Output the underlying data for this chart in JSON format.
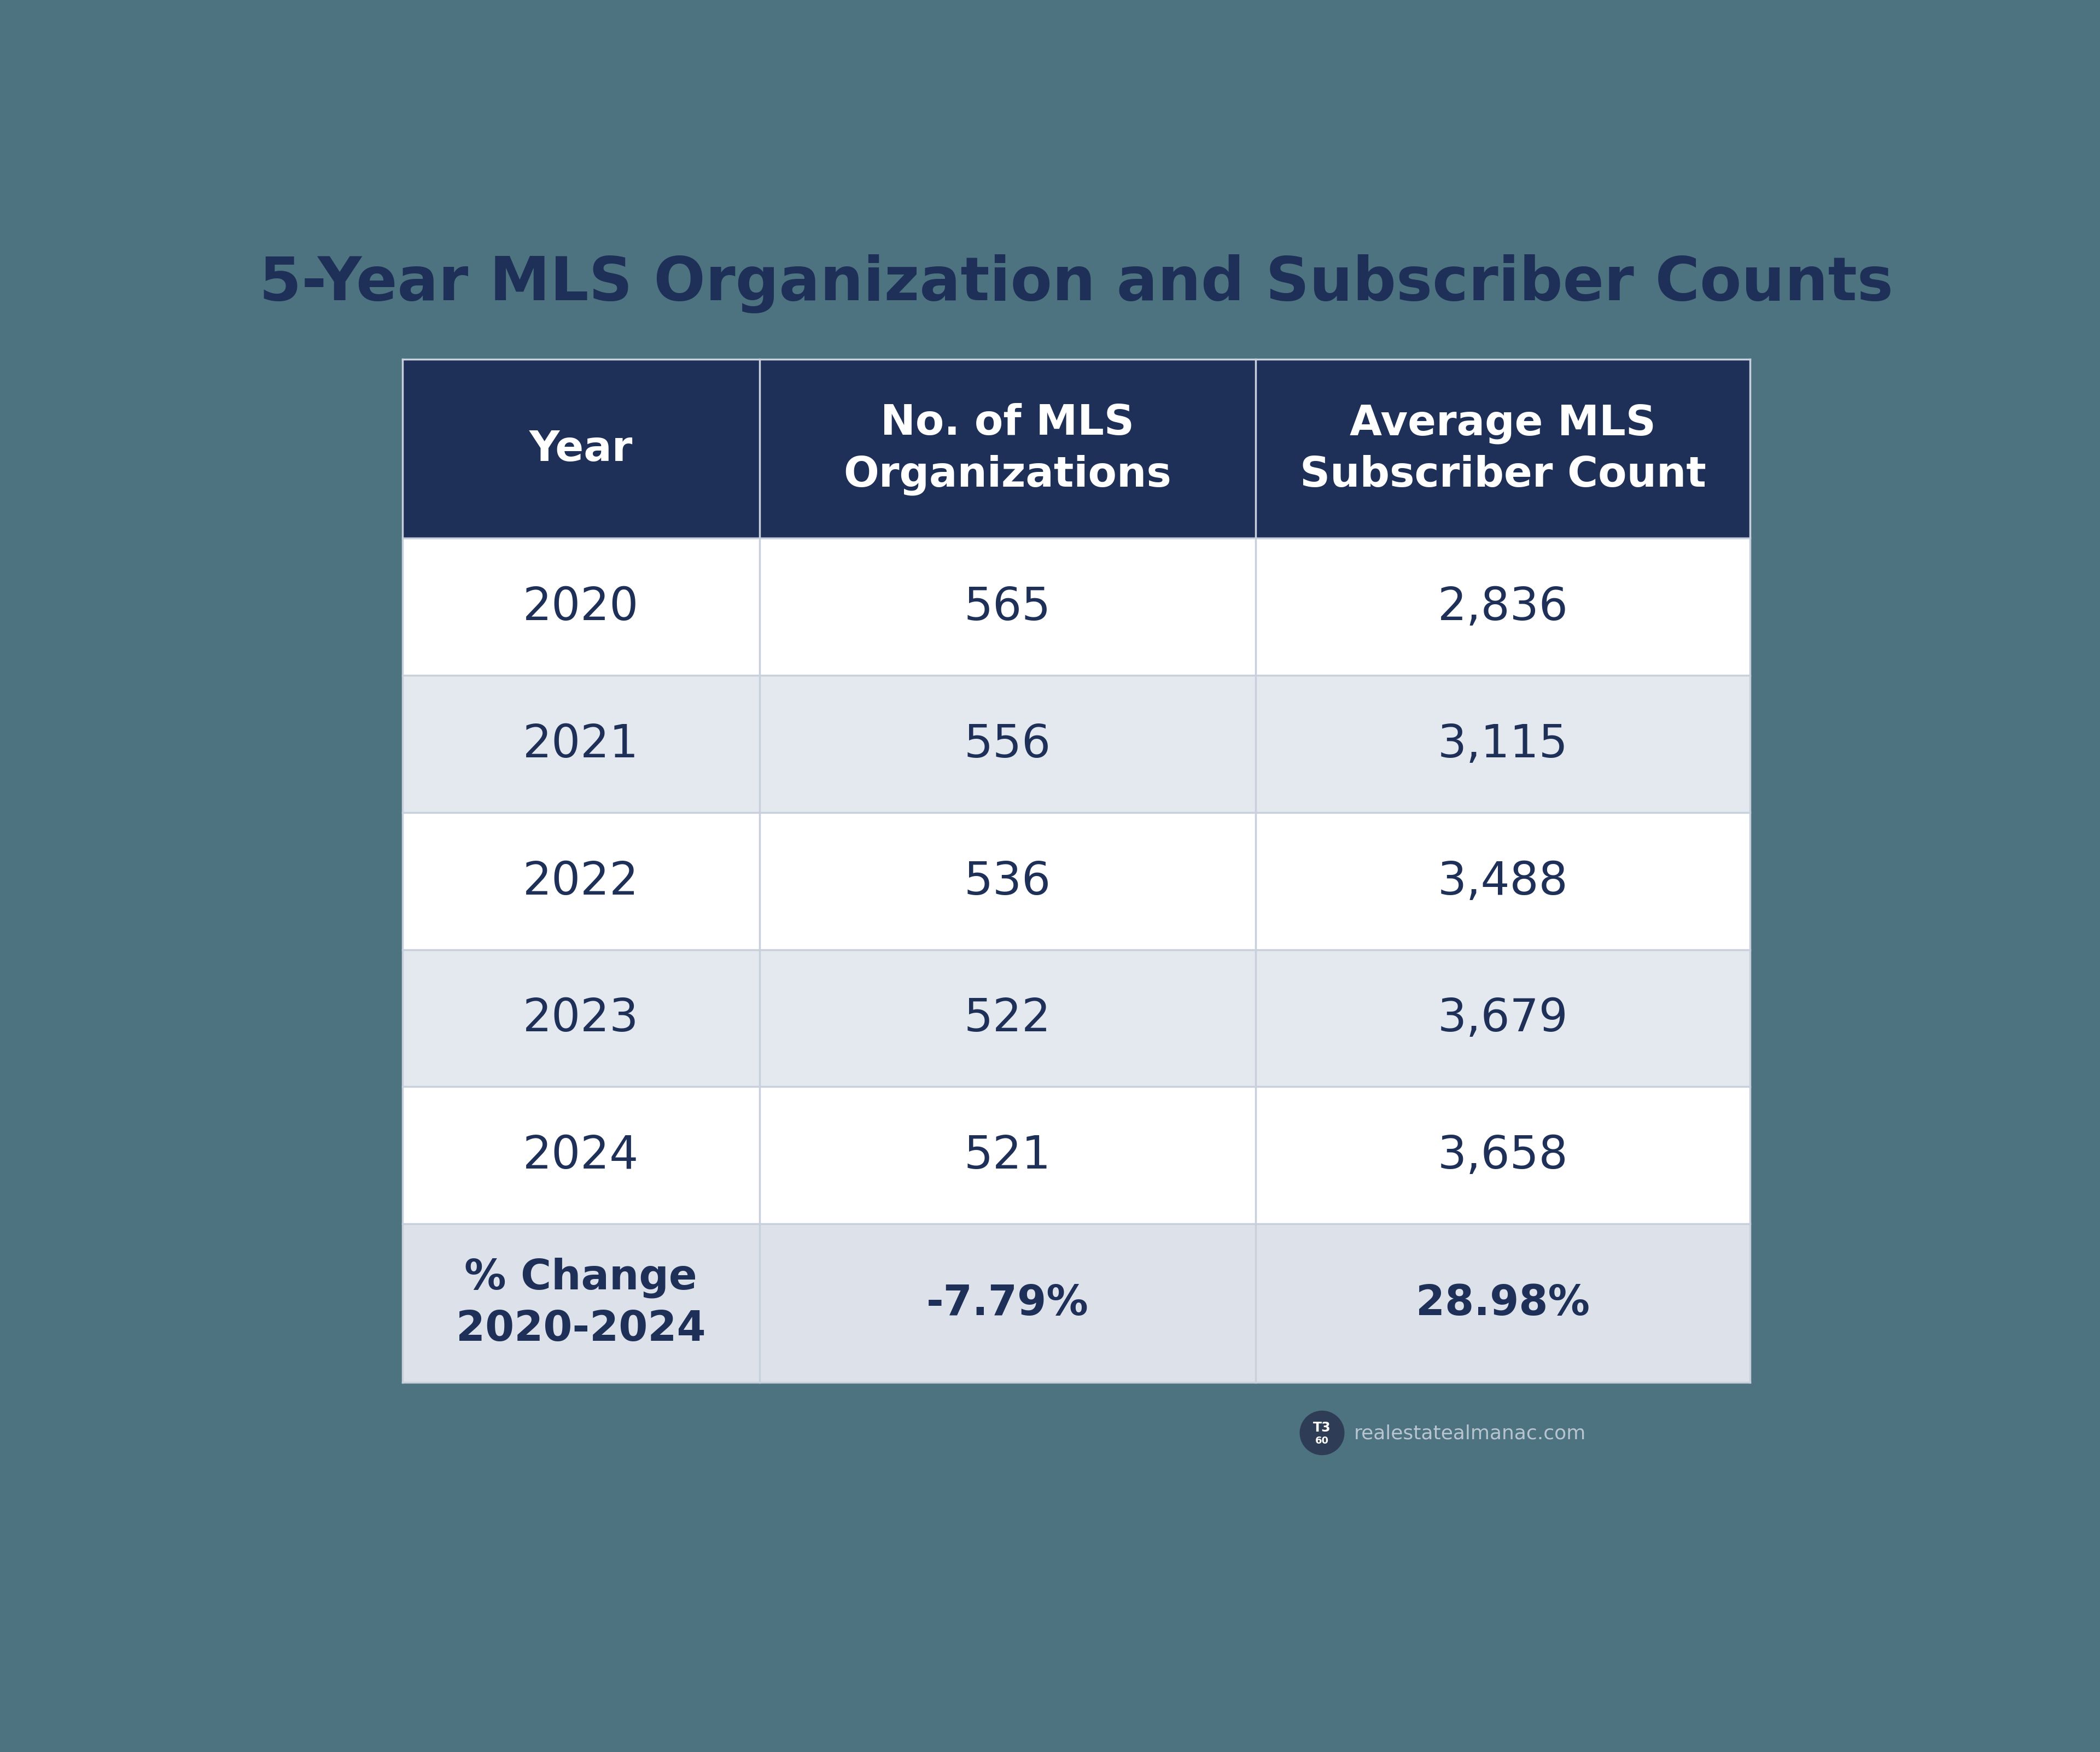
{
  "title": "5-Year MLS Organization and Subscriber Counts",
  "background_color": "#4d7280",
  "header_bg_color": "#1e3058",
  "header_text_color": "#ffffff",
  "row_colors": [
    "#ffffff",
    "#e4e8ef",
    "#ffffff",
    "#e4e8ef",
    "#ffffff"
  ],
  "footer_row_color": "#dde1ea",
  "cell_text_color": "#1e3058",
  "footer_text_color": "#1e3058",
  "col_headers": [
    "Year",
    "No. of MLS\nOrganizations",
    "Average MLS\nSubscriber Count"
  ],
  "rows": [
    [
      "2020",
      "565",
      "2,836"
    ],
    [
      "2021",
      "556",
      "3,115"
    ],
    [
      "2022",
      "536",
      "3,488"
    ],
    [
      "2023",
      "522",
      "3,679"
    ],
    [
      "2024",
      "521",
      "3,658"
    ]
  ],
  "footer_row": [
    "% Change\n2020-2024",
    "-7.79%",
    "28.98%"
  ],
  "title_fontsize": 80,
  "header_fontsize": 55,
  "cell_fontsize": 60,
  "footer_fontsize": 55,
  "watermark_text": "realestatealmanac.com",
  "border_color": "#c0c8d8",
  "grid_color": "#c8d0dc"
}
